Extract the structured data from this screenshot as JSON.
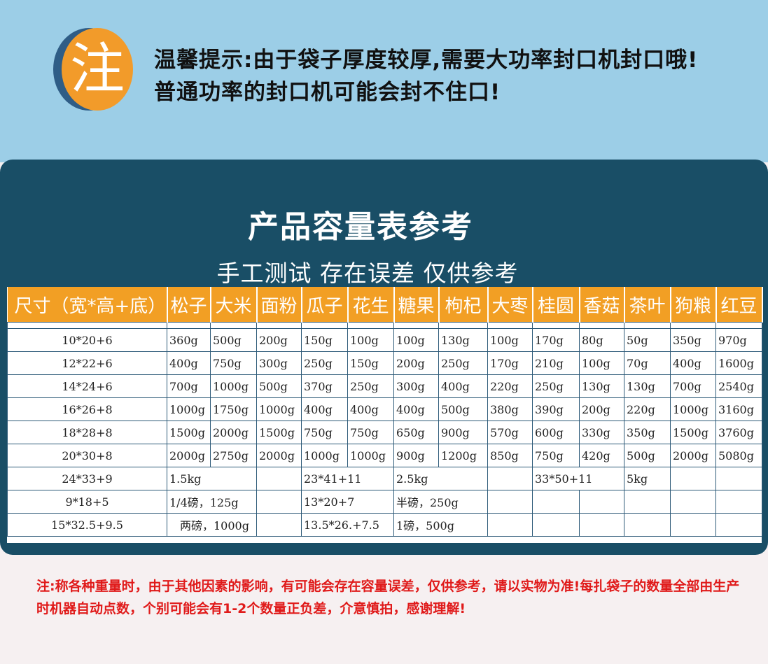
{
  "notice": {
    "badge": "注",
    "line1": "温馨提示:由于袋子厚度较厚,需要大功率封口机封口哦!",
    "line2": "普通功率的封口机可能会封不住口!"
  },
  "panel": {
    "title": "产品容量表参考",
    "subtitle": "手工测试 存在误差 仅供参考"
  },
  "table": {
    "headers": [
      "尺寸（宽*高+底）",
      "松子",
      "大米",
      "面粉",
      "瓜子",
      "花生",
      "糖果",
      "枸杞",
      "大枣",
      "桂圆",
      "香菇",
      "茶叶",
      "狗粮",
      "红豆"
    ],
    "rows": [
      [
        "10*20+6",
        "360g",
        "500g",
        "200g",
        "150g",
        "100g",
        "100g",
        "130g",
        "100g",
        "170g",
        "80g",
        "50g",
        "350g",
        "970g"
      ],
      [
        "12*22+6",
        "400g",
        "750g",
        "300g",
        "250g",
        "150g",
        "200g",
        "250g",
        "170g",
        "210g",
        "100g",
        "70g",
        "400g",
        "1600g"
      ],
      [
        "14*24+6",
        "700g",
        "1000g",
        "500g",
        "370g",
        "250g",
        "300g",
        "400g",
        "220g",
        "250g",
        "130g",
        "130g",
        "700g",
        "2540g"
      ],
      [
        "16*26+8",
        "1000g",
        "1750g",
        "1000g",
        "400g",
        "400g",
        "400g",
        "500g",
        "380g",
        "390g",
        "200g",
        "220g",
        "1000g",
        "3160g"
      ],
      [
        "18*28+8",
        "1500g",
        "2000g",
        "1500g",
        "750g",
        "750g",
        "650g",
        "900g",
        "570g",
        "600g",
        "330g",
        "350g",
        "1500g",
        "3760g"
      ],
      [
        "20*30+8",
        "2000g",
        "2750g",
        "2000g",
        "1000g",
        "1000g",
        "900g",
        "1200g",
        "850g",
        "750g",
        "420g",
        "500g",
        "2000g",
        "5080g"
      ]
    ],
    "extra_rows": [
      {
        "size": "24*33+9",
        "a": "1.5kg",
        "b_size": "23*41+11",
        "b": "2.5kg",
        "c_size": "33*50+11",
        "c": "5kg"
      },
      {
        "size": "9*18+5",
        "a": "1/4磅，125g",
        "b_size": "13*20+7",
        "b": "半磅，250g"
      },
      {
        "size": "15*32.5+9.5",
        "a": "两磅，1000g",
        "b_size": "13.5*26.+7.5",
        "b": "1磅，500g"
      }
    ]
  },
  "footer": {
    "note": "注:称各种重量时，由于其他因素的影响，有可能会存在容量误差，仅供参考，请以实物为准!每扎袋子的数量全部由生产时机器自动点数，个别可能会有1-2个数量正负差，介意慎拍，感谢理解!"
  },
  "colors": {
    "sky": "#9ccee7",
    "panel": "#194e66",
    "header_orange": "#f29f24",
    "badge_orange": "#f29b2a",
    "footer_red": "#e01a1a"
  }
}
